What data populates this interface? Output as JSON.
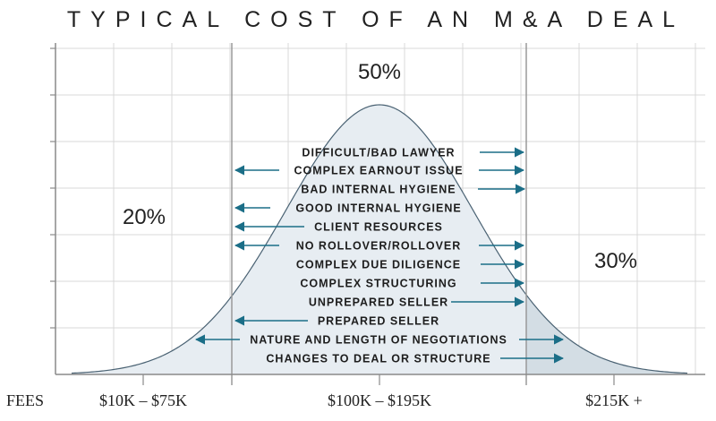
{
  "chart_data": {
    "type": "area",
    "title": "TYPICAL COST OF AN M&A DEAL",
    "x_axis_label": "FEES",
    "categories": [
      "$10K – $75K",
      "$100K – $195K",
      "$215K +"
    ],
    "segments": [
      {
        "category": "$10K – $75K",
        "share_label": "20%"
      },
      {
        "category": "$100K – $195K",
        "share_label": "50%"
      },
      {
        "category": "$215K +",
        "share_label": "30%"
      }
    ],
    "factors": [
      {
        "label": "DIFFICULT/BAD LAWYER",
        "direction": "right"
      },
      {
        "label": "COMPLEX EARNOUT ISSUE",
        "direction": "both"
      },
      {
        "label": "BAD INTERNAL HYGIENE",
        "direction": "right"
      },
      {
        "label": "GOOD INTERNAL HYGIENE",
        "direction": "left"
      },
      {
        "label": "CLIENT RESOURCES",
        "direction": "left"
      },
      {
        "label": "NO ROLLOVER/ROLLOVER",
        "direction": "both"
      },
      {
        "label": "COMPLEX DUE DILIGENCE",
        "direction": "right"
      },
      {
        "label": "COMPLEX STRUCTURING",
        "direction": "right"
      },
      {
        "label": "UNPREPARED SELLER",
        "direction": "right"
      },
      {
        "label": "PREPARED SELLER",
        "direction": "left"
      },
      {
        "label": "NATURE AND LENGTH OF NEGOTIATIONS",
        "direction": "both"
      },
      {
        "label": "CHANGES TO DEAL OR STRUCTURE",
        "direction": "right"
      }
    ],
    "grid": true,
    "colors": {
      "center_fill": "#e7edf2",
      "tail_fill": "#d3dde4",
      "curve_stroke": "#4a6273",
      "arrow": "#1b6e87",
      "grid": "#d8d8d8",
      "divider": "#9a9a9a"
    }
  }
}
